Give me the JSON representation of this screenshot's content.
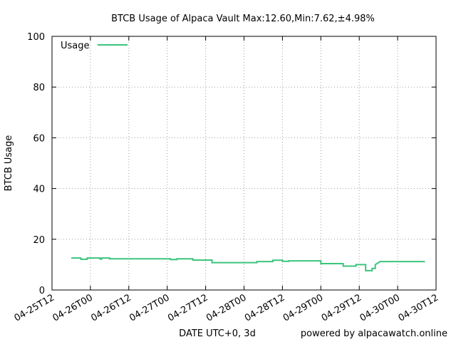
{
  "chart_data": {
    "type": "line",
    "title": "BTCB Usage of Alpaca Vault Max:12.60,Min:7.62,±4.98%",
    "xlabel": "DATE UTC+0, 3d",
    "ylabel": "BTCB Usage",
    "footer": "powered by alpacawatch.online",
    "ylim": [
      0,
      100
    ],
    "yticks": [
      0,
      20,
      40,
      60,
      80,
      100
    ],
    "xlim": [
      "2023-04-25T12:00",
      "2023-04-30T12:00"
    ],
    "xticks": [
      {
        "t": "2023-04-25T12:00",
        "label": "04-25T12"
      },
      {
        "t": "2023-04-26T00:00",
        "label": "04-26T00"
      },
      {
        "t": "2023-04-26T12:00",
        "label": "04-26T12"
      },
      {
        "t": "2023-04-27T00:00",
        "label": "04-27T00"
      },
      {
        "t": "2023-04-27T12:00",
        "label": "04-27T12"
      },
      {
        "t": "2023-04-28T00:00",
        "label": "04-28T00"
      },
      {
        "t": "2023-04-28T12:00",
        "label": "04-28T12"
      },
      {
        "t": "2023-04-29T00:00",
        "label": "04-29T00"
      },
      {
        "t": "2023-04-29T12:00",
        "label": "04-29T12"
      },
      {
        "t": "2023-04-30T00:00",
        "label": "04-30T00"
      },
      {
        "t": "2023-04-30T12:00",
        "label": "04-30T12"
      }
    ],
    "grid": true,
    "legend_position": "top-left",
    "series": [
      {
        "name": "Usage",
        "color": "#3cc47c",
        "x": [
          "2023-04-25T18:00",
          "2023-04-25T21:00",
          "2023-04-25T21:00",
          "2023-04-25T23:00",
          "2023-04-25T23:00",
          "2023-04-26T03:00",
          "2023-04-26T03:00",
          "2023-04-26T03:30",
          "2023-04-26T03:30",
          "2023-04-26T06:00",
          "2023-04-26T06:00",
          "2023-04-27T01:00",
          "2023-04-27T01:00",
          "2023-04-27T03:00",
          "2023-04-27T03:00",
          "2023-04-27T08:00",
          "2023-04-27T08:00",
          "2023-04-27T14:00",
          "2023-04-27T14:00",
          "2023-04-28T04:00",
          "2023-04-28T04:00",
          "2023-04-28T09:00",
          "2023-04-28T09:00",
          "2023-04-28T12:00",
          "2023-04-28T12:00",
          "2023-04-28T14:00",
          "2023-04-28T14:00",
          "2023-04-29T00:00",
          "2023-04-29T00:00",
          "2023-04-29T07:00",
          "2023-04-29T07:00",
          "2023-04-29T11:00",
          "2023-04-29T11:00",
          "2023-04-29T14:00",
          "2023-04-29T14:00",
          "2023-04-29T16:00",
          "2023-04-29T16:00",
          "2023-04-29T17:00",
          "2023-04-29T17:00",
          "2023-04-29T18:00",
          "2023-04-29T18:30",
          "2023-04-30T08:30"
        ],
        "y": [
          12.6,
          12.6,
          12.1,
          12.1,
          12.6,
          12.6,
          12.2,
          12.2,
          12.6,
          12.6,
          12.3,
          12.3,
          12.0,
          12.0,
          12.3,
          12.3,
          11.8,
          11.8,
          10.8,
          10.8,
          11.2,
          11.2,
          11.7,
          11.7,
          11.3,
          11.3,
          11.5,
          11.5,
          10.4,
          10.4,
          9.4,
          9.4,
          10.0,
          10.0,
          7.62,
          7.62,
          8.5,
          8.5,
          10.0,
          10.8,
          11.2,
          11.2
        ]
      }
    ]
  }
}
